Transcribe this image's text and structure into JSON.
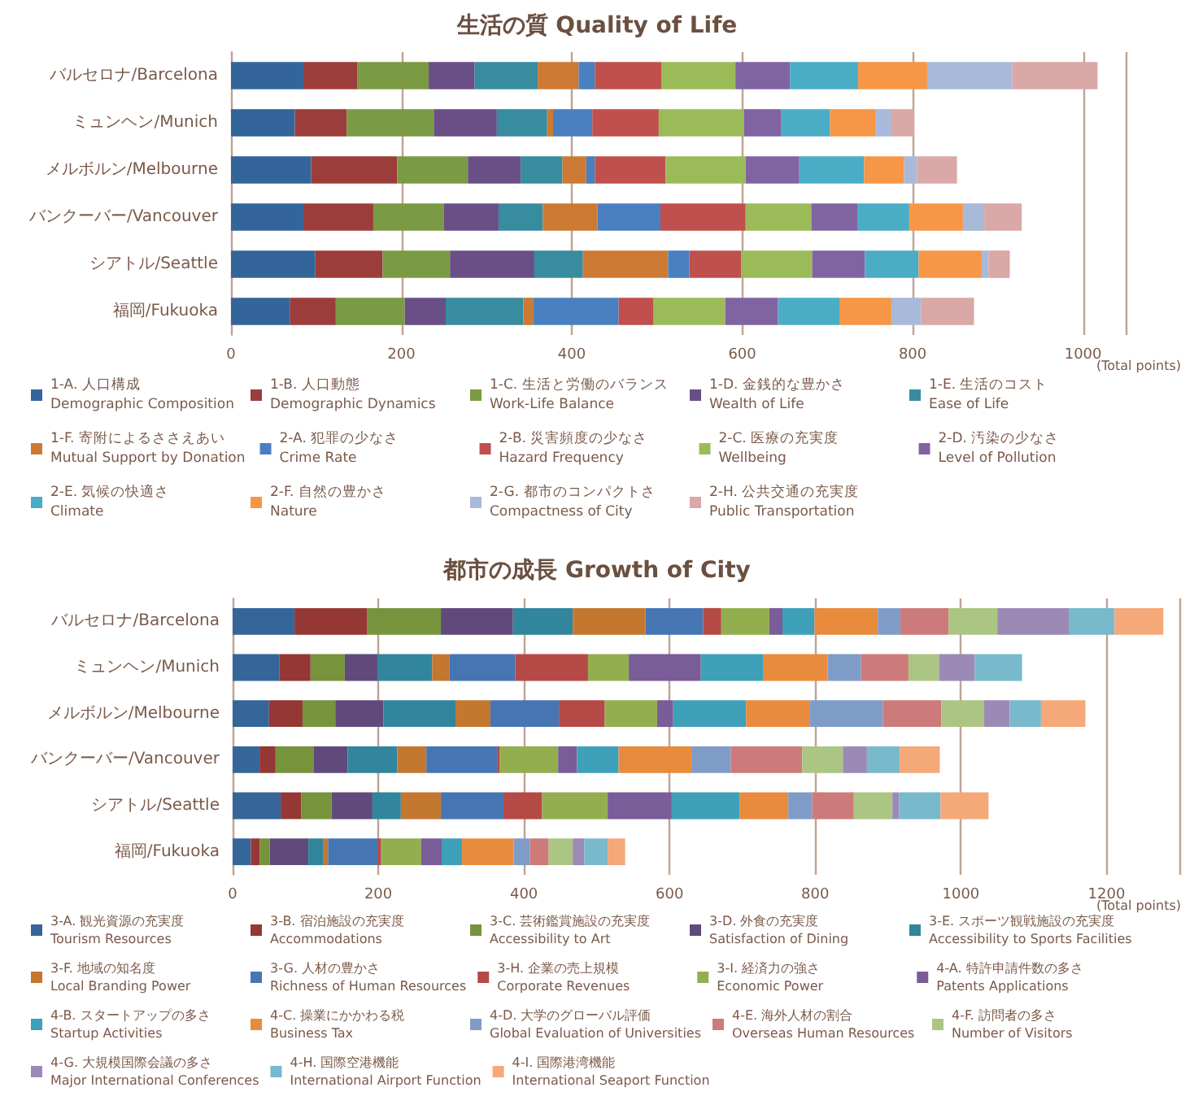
{
  "chart_data": [
    {
      "type": "bar",
      "title": "生活の質 Quality of Life",
      "xlabel": "(Total points)",
      "orientation": "horizontal",
      "stacked": true,
      "grid": "x",
      "legend": "bottom",
      "xlim": [
        0,
        1050
      ],
      "xticks": [
        0,
        200,
        400,
        600,
        800,
        1000
      ],
      "categories": [
        "バルセロナ/Barcelona",
        "ミュンヘン/Munich",
        "メルボルン/Melbourne",
        "バンクーバー/Vancouver",
        "シアトル/Seattle",
        "福岡/Fukuoka"
      ],
      "series": [
        {
          "name": "1-A. 人口構成\nDemographic Composition",
          "color": "#34659a",
          "values": [
            85,
            75,
            94,
            85,
            99,
            69
          ]
        },
        {
          "name": "1-B. 人口動態\nDemographic Dynamics",
          "color": "#9b3d3a",
          "values": [
            63,
            61,
            101,
            82,
            79,
            54
          ]
        },
        {
          "name": "1-C. 生活と労働のバランス\nWork-Life Balance",
          "color": "#7b9a44",
          "values": [
            84,
            102,
            83,
            83,
            79,
            81
          ]
        },
        {
          "name": "1-D. 金銭的な豊かさ\nWealth of Life",
          "color": "#6a4e86",
          "values": [
            54,
            74,
            62,
            64,
            99,
            48
          ]
        },
        {
          "name": "1-E. 生活のコスト\nEase of Life",
          "color": "#378c9f",
          "values": [
            74,
            59,
            49,
            52,
            57,
            91
          ]
        },
        {
          "name": "1-F. 寄附によるささえあい\nMutual Support by Donation",
          "color": "#cc7a33",
          "values": [
            48,
            7,
            28,
            64,
            100,
            12
          ]
        },
        {
          "name": "2-A. 犯罪の少なさ\nCrime Rate",
          "color": "#4a80c0",
          "values": [
            19,
            46,
            10,
            74,
            25,
            100
          ]
        },
        {
          "name": "2-B. 災害頻度の少なさ\nHazard Frequency",
          "color": "#c0504d",
          "values": [
            78,
            78,
            83,
            100,
            61,
            41
          ]
        },
        {
          "name": "2-C. 医療の充実度\nWellbeing",
          "color": "#9bbb59",
          "values": [
            87,
            100,
            94,
            77,
            83,
            84
          ]
        },
        {
          "name": "2-D. 汚染の少なさ\nLevel of Pollution",
          "color": "#8064a2",
          "values": [
            64,
            44,
            63,
            54,
            62,
            62
          ]
        },
        {
          "name": "2-E. 気候の快適さ\nClimate",
          "color": "#4bacc6",
          "values": [
            80,
            57,
            76,
            61,
            63,
            72
          ]
        },
        {
          "name": "2-F. 自然の豊かさ\nNature",
          "color": "#f79646",
          "values": [
            81,
            53,
            47,
            63,
            74,
            61
          ]
        },
        {
          "name": "2-G. 都市のコンパクトさ\nCompactness of City",
          "color": "#a9b9d9",
          "values": [
            100,
            19,
            15,
            25,
            8,
            35
          ]
        },
        {
          "name": "2-H. 公共交通の充実度\nPublic Transportation",
          "color": "#d9a8a7",
          "values": [
            100,
            27,
            47,
            44,
            25,
            62
          ]
        }
      ]
    },
    {
      "type": "bar",
      "title": "都市の成長 Growth of City",
      "xlabel": "(Total points)",
      "orientation": "horizontal",
      "stacked": true,
      "grid": "x",
      "legend": "bottom",
      "xlim": [
        0,
        1300
      ],
      "xticks": [
        0,
        200,
        400,
        600,
        800,
        1000,
        1200
      ],
      "categories": [
        "バルセロナ/Barcelona",
        "ミュンヘン/Munich",
        "メルボルン/Melbourne",
        "バンクーバー/Vancouver",
        "シアトル/Seattle",
        "福岡/Fukuoka"
      ],
      "series": [
        {
          "name": "3-A. 観光資源の充実度\nTourism Resources",
          "color": "#356699",
          "values": [
            85,
            64,
            50,
            37,
            66,
            25
          ]
        },
        {
          "name": "3-B. 宿泊施設の充実度\nAccommodations",
          "color": "#953735",
          "values": [
            100,
            43,
            46,
            22,
            28,
            12
          ]
        },
        {
          "name": "3-C. 芸術鑑賞施設の充実度\nAccessibility to Art",
          "color": "#77933c",
          "values": [
            101,
            47,
            45,
            52,
            42,
            14
          ]
        },
        {
          "name": "3-D. 外食の充実度\nSatisfaction of Dining",
          "color": "#604a7b",
          "values": [
            99,
            45,
            66,
            47,
            56,
            53
          ]
        },
        {
          "name": "3-E. スポーツ観戦施設の充実度\nAccessibility to Sports Facilities",
          "color": "#31859c",
          "values": [
            82,
            75,
            99,
            68,
            39,
            20
          ]
        },
        {
          "name": "3-F. 地域の知名度\nLocal Branding Power",
          "color": "#c3772f",
          "values": [
            100,
            24,
            48,
            40,
            55,
            7
          ]
        },
        {
          "name": "3-G. 人材の豊かさ\nRichness of Human Resources",
          "color": "#4675b4",
          "values": [
            79,
            90,
            94,
            98,
            86,
            68
          ]
        },
        {
          "name": "3-H. 企業の売上規模\nCorporate Revenues",
          "color": "#b44946",
          "values": [
            25,
            100,
            63,
            3,
            53,
            5
          ]
        },
        {
          "name": "3-I. 経済力の強さ\nEconomic Power",
          "color": "#93ae4f",
          "values": [
            66,
            56,
            72,
            80,
            90,
            55
          ]
        },
        {
          "name": "4-A. 特許申請件数の多さ\nPatents Applications",
          "color": "#7a5c98",
          "values": [
            18,
            99,
            22,
            26,
            88,
            28
          ]
        },
        {
          "name": "4-B. スタートアップの多さ\nStartup Activities",
          "color": "#3ea0b9",
          "values": [
            44,
            86,
            100,
            57,
            93,
            28
          ]
        },
        {
          "name": "4-C. 操業にかかわる税\nBusiness Tax",
          "color": "#e98b3c",
          "values": [
            87,
            88,
            87,
            100,
            67,
            71
          ]
        },
        {
          "name": "4-D. 大学のグローバル評価\nGlobal Evaluation of Universities",
          "color": "#7f9cc9",
          "values": [
            31,
            46,
            101,
            54,
            33,
            22
          ]
        },
        {
          "name": "4-E. 海外人材の割合\nOverseas Human Resources",
          "color": "#cc7b7a",
          "values": [
            66,
            65,
            80,
            98,
            57,
            26
          ]
        },
        {
          "name": "4-F. 訪問者の多さ\nNumber of Visitors",
          "color": "#abc583",
          "values": [
            67,
            42,
            59,
            56,
            53,
            33
          ]
        },
        {
          "name": "4-G. 大規模国際会議の多さ\nMajor International Conferences",
          "color": "#9b8ab5",
          "values": [
            99,
            49,
            35,
            33,
            9,
            16
          ]
        },
        {
          "name": "4-H. 国際空港機能\nInternational Airport Function",
          "color": "#78b9cc",
          "values": [
            62,
            65,
            43,
            45,
            57,
            32
          ]
        },
        {
          "name": "4-I. 国際港湾機能\nInternational Seaport Function",
          "color": "#f5a878",
          "values": [
            67,
            0,
            61,
            55,
            66,
            24
          ]
        }
      ]
    }
  ]
}
